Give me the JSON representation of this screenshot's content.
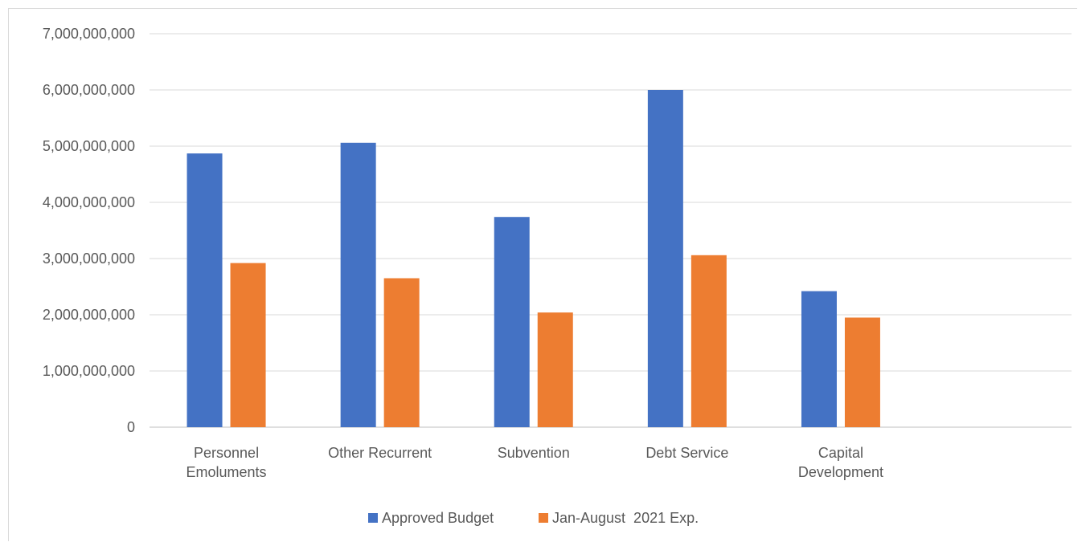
{
  "chart_data": {
    "type": "bar",
    "categories": [
      [
        "Personnel",
        "Emoluments"
      ],
      [
        "Other Recurrent"
      ],
      [
        "Subvention"
      ],
      [
        "Debt Service"
      ],
      [
        "Capital",
        "Development"
      ]
    ],
    "series": [
      {
        "name": "Approved Budget",
        "color": "#4472c4",
        "values": [
          4870000000,
          5060000000,
          3740000000,
          6000000000,
          2420000000
        ]
      },
      {
        "name": "Jan-August  2021 Exp.",
        "color": "#ed7d31",
        "values": [
          2920000000,
          2650000000,
          2040000000,
          3060000000,
          1950000000
        ]
      }
    ],
    "y_ticks": [
      "0",
      "1,000,000,000",
      "2,000,000,000",
      "3,000,000,000",
      "4,000,000,000",
      "5,000,000,000",
      "6,000,000,000",
      "7,000,000,000"
    ],
    "ylim": [
      0,
      7000000000
    ],
    "grid": true,
    "legend_position": "bottom"
  }
}
